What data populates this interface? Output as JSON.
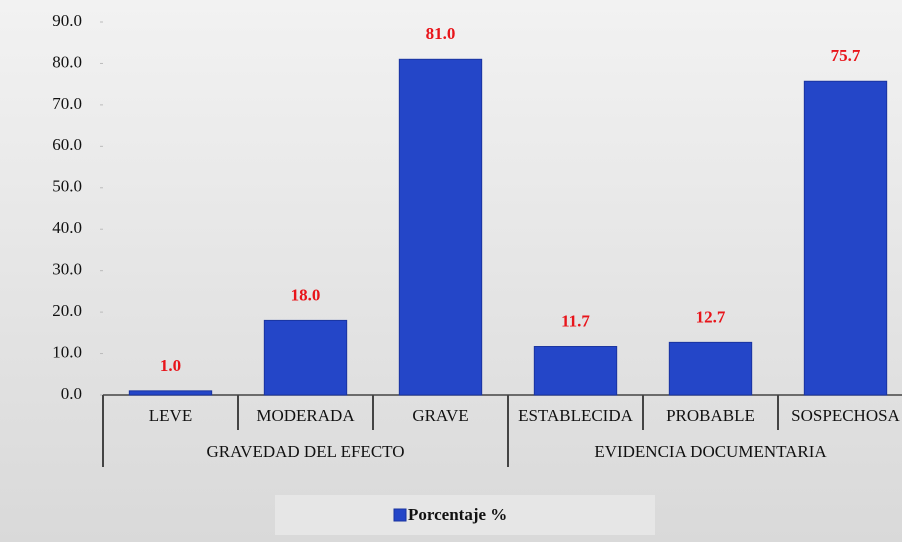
{
  "chart_data": {
    "type": "bar",
    "groups": [
      {
        "label": "GRAVEDAD DEL EFECTO",
        "categories": [
          "LEVE",
          "MODERADA",
          "GRAVE"
        ]
      },
      {
        "label": "EVIDENCIA DOCUMENTARIA",
        "categories": [
          "ESTABLECIDA",
          "PROBABLE",
          "SOSPECHOSA"
        ]
      }
    ],
    "series": [
      {
        "name": "Porcentaje %",
        "color": "#2446c8",
        "values": [
          1.0,
          18.0,
          81.0,
          11.7,
          12.7,
          75.7
        ],
        "value_labels": [
          "1.0",
          "18.0",
          "81.0",
          "11.7",
          "12.7",
          "75.7"
        ]
      }
    ],
    "ylim": [
      0,
      90
    ],
    "yticks": [
      {
        "value": 0,
        "label": "0.0"
      },
      {
        "value": 10,
        "label": "10.0"
      },
      {
        "value": 20,
        "label": "20.0"
      },
      {
        "value": 30,
        "label": "30.0"
      },
      {
        "value": 40,
        "label": "40.0"
      },
      {
        "value": 50,
        "label": "50.0"
      },
      {
        "value": 60,
        "label": "60.0"
      },
      {
        "value": 70,
        "label": "70.0"
      },
      {
        "value": 80,
        "label": "80.0"
      },
      {
        "value": 90,
        "label": "90.0"
      }
    ],
    "value_label_color": "#e8141a",
    "legend": "bottom"
  }
}
